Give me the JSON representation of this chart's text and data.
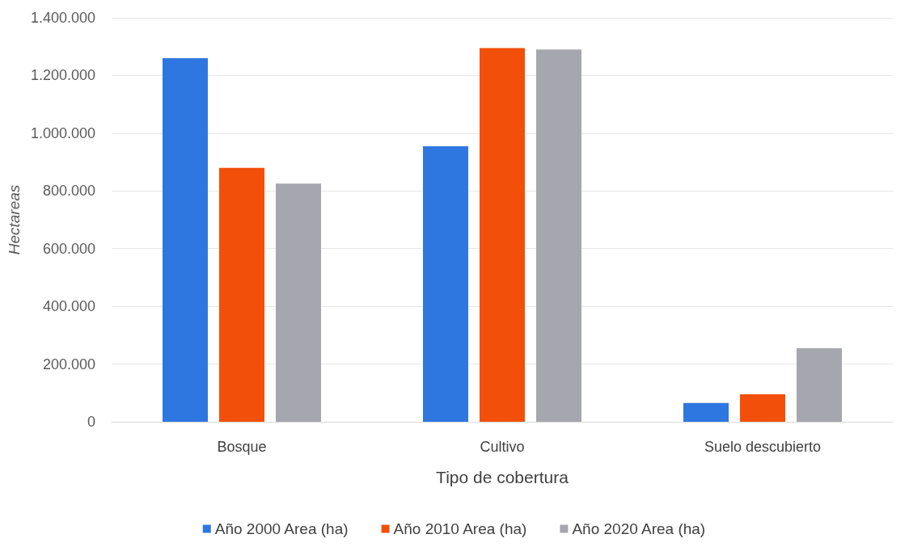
{
  "chart_data": {
    "type": "bar",
    "xlabel": "Tipo de cobertura",
    "ylabel": "Hectareas",
    "categories": [
      "Bosque",
      "Cultivo",
      "Suelo descubierto"
    ],
    "series": [
      {
        "name": "Año 2000 Area (ha)",
        "color": "#2f77e0",
        "values": [
          1260000,
          955000,
          65000
        ]
      },
      {
        "name": "Año 2010 Area (ha)",
        "color": "#f24f0a",
        "values": [
          880000,
          1295000,
          95000
        ]
      },
      {
        "name": "Año 2020 Area (ha)",
        "color": "#a6a6ae",
        "values": [
          825000,
          1290000,
          255000
        ]
      }
    ],
    "ylim": [
      0,
      1400000
    ],
    "yticks": [
      {
        "value": 0,
        "label": "0"
      },
      {
        "value": 200000,
        "label": "200.000"
      },
      {
        "value": 400000,
        "label": "400.000"
      },
      {
        "value": 600000,
        "label": "600.000"
      },
      {
        "value": 800000,
        "label": "800.000"
      },
      {
        "value": 1000000,
        "label": "1.000.000"
      },
      {
        "value": 1200000,
        "label": "1.200.000"
      },
      {
        "value": 1400000,
        "label": "1.400.000"
      }
    ],
    "grid": "y",
    "legend": "bottom"
  }
}
